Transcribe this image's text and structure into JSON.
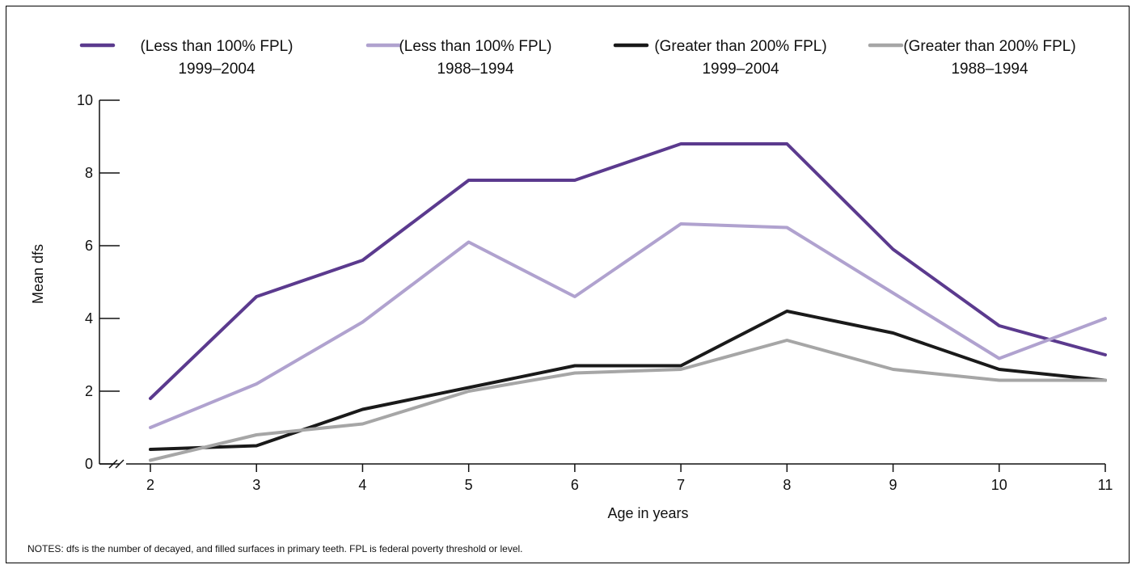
{
  "chart_data": {
    "type": "line",
    "title": "",
    "xlabel": "Age in years",
    "ylabel": "Mean dfs",
    "x": [
      2,
      3,
      4,
      5,
      6,
      7,
      8,
      9,
      10,
      11
    ],
    "xlim": [
      2,
      11
    ],
    "ylim": [
      0,
      10
    ],
    "yticks": [
      0,
      2,
      4,
      6,
      8,
      10
    ],
    "y_axis_break": true,
    "grid": false,
    "legend_position": "top",
    "series": [
      {
        "name_line1": "(Less than 100% FPL)",
        "name_line2": "1999–2004",
        "color": "#5b3a8e",
        "values": [
          1.8,
          4.6,
          5.6,
          7.8,
          7.8,
          8.8,
          8.8,
          5.9,
          3.8,
          3.0
        ]
      },
      {
        "name_line1": "(Less than 100% FPL)",
        "name_line2": "1988–1994",
        "color": "#b0a2cf",
        "values": [
          1.0,
          2.2,
          3.9,
          6.1,
          4.6,
          6.6,
          6.5,
          4.7,
          2.9,
          4.0
        ]
      },
      {
        "name_line1": "(Greater than 200% FPL)",
        "name_line2": "1999–2004",
        "color": "#1a1a1a",
        "values": [
          0.4,
          0.5,
          1.5,
          2.1,
          2.7,
          2.7,
          4.2,
          3.6,
          2.6,
          2.3
        ]
      },
      {
        "name_line1": "(Greater than 200% FPL)",
        "name_line2": "1988–1994",
        "color": "#a6a6a6",
        "values": [
          0.1,
          0.8,
          1.1,
          2.0,
          2.5,
          2.6,
          3.4,
          2.6,
          2.3,
          2.3
        ]
      }
    ]
  },
  "notes": "NOTES: dfs is the number of decayed, and filled surfaces in primary teeth.  FPL is federal poverty threshold or level."
}
